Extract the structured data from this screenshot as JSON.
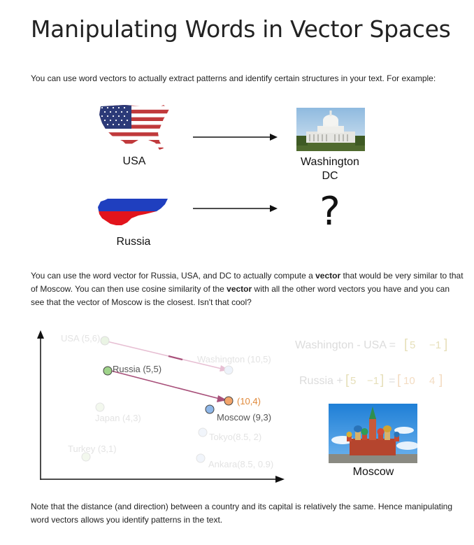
{
  "title": "Manipulating Words in Vector Spaces",
  "intro": "You can use word vectors to actually extract patterns and identify certain structures in your text. For example:",
  "top_labels": {
    "usa": "USA",
    "washington_line1": "Washington",
    "washington_line2": "DC",
    "russia": "Russia",
    "question": "?"
  },
  "middle_paragraph": {
    "part1": "You can use the word vector for Russia, USA, and DC to actually compute a ",
    "bold1": "vector",
    "part2": " that would be very similar to that of Moscow. You can then use cosine similarity of the ",
    "bold2": "vector",
    "part3": " with all the other word vectors you have and you can see that the vector of Moscow is the closest. Isn't that cool?"
  },
  "diagram": {
    "points": [
      {
        "label": "USA (5,6)",
        "faded": true
      },
      {
        "label": "Washington (10,5)",
        "faded": true
      },
      {
        "label": "Russia (5,5)",
        "faded": false
      },
      {
        "label": "(10,4)",
        "faded": false
      },
      {
        "label": "Moscow (9,3)",
        "faded": false
      },
      {
        "label": "Japan (4,3)",
        "faded": true
      },
      {
        "label": "Tokyo(8.5, 2)",
        "faded": true
      },
      {
        "label": "Turkey (3,1)",
        "faded": true
      },
      {
        "label": "Ankara(8.5, 0.9)",
        "faded": true
      }
    ],
    "eq1_text": "Washington - USA =",
    "eq1_vec": [
      "5",
      "−1"
    ],
    "eq2_text": "Russia +",
    "eq2_vec": [
      "5",
      "−1"
    ],
    "eq2_eq": "=",
    "eq2_result": [
      "10",
      "4"
    ],
    "moscow_label": "Moscow",
    "colors": {
      "green": "#9fd38a",
      "orange": "#f2a56b",
      "blue": "#8fb7e8",
      "arrow_main": "#a8507a",
      "arrow_faded": "#e7bfd3"
    }
  },
  "note": "Note that the distance (and direction) between a country and its capital is relatively the same. Hence manipulating word vectors allows you identify patterns in the text."
}
